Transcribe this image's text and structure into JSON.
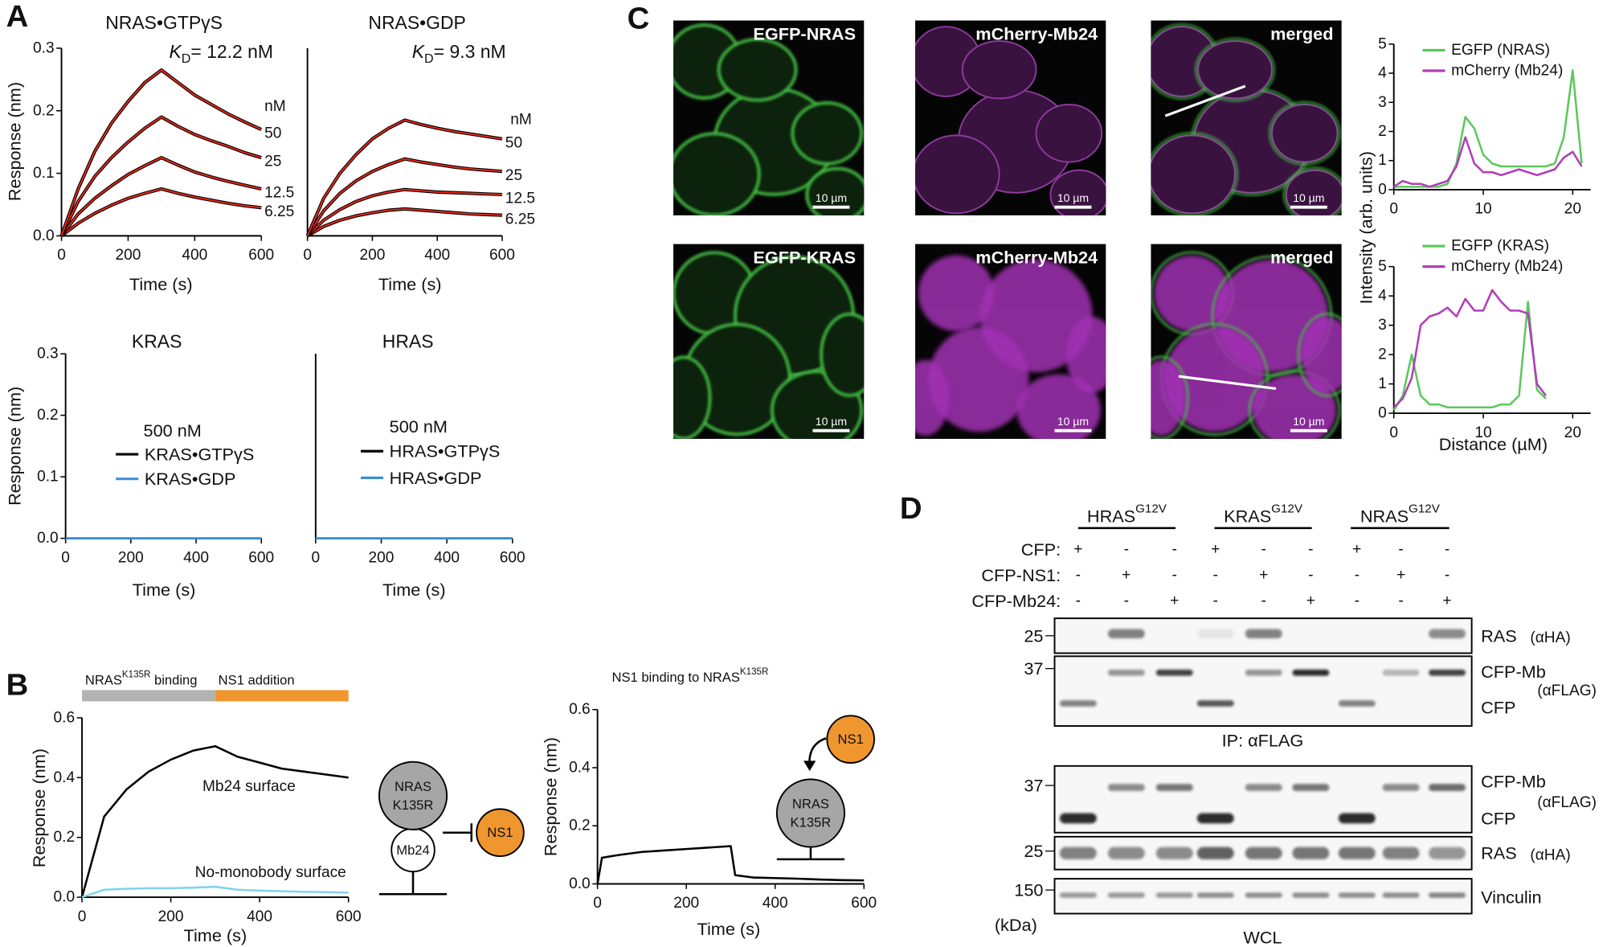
{
  "panels": {
    "a": "A",
    "b": "B",
    "c": "C",
    "d": "D"
  },
  "chart_data": [
    {
      "type": "line",
      "title": "NRAS•GTPγS",
      "kd": {
        "symbol": "K",
        "subscript": "D",
        "value": "= 12.2 nM"
      },
      "unit_label": "nM",
      "series_labels": "end",
      "trace_color": "#000000",
      "x": [
        0,
        50,
        100,
        150,
        200,
        250,
        300,
        350,
        400,
        450,
        500,
        550,
        600
      ],
      "series": [
        {
          "name": "50",
          "color": "#e8291c",
          "values": [
            0,
            0.075,
            0.135,
            0.18,
            0.215,
            0.245,
            0.265,
            0.245,
            0.225,
            0.21,
            0.195,
            0.182,
            0.17
          ]
        },
        {
          "name": "25",
          "color": "#e8291c",
          "values": [
            0,
            0.055,
            0.095,
            0.125,
            0.15,
            0.172,
            0.19,
            0.175,
            0.162,
            0.152,
            0.143,
            0.133,
            0.125
          ]
        },
        {
          "name": "12.5",
          "color": "#e8291c",
          "values": [
            0,
            0.035,
            0.06,
            0.08,
            0.098,
            0.112,
            0.125,
            0.113,
            0.102,
            0.094,
            0.087,
            0.081,
            0.075
          ]
        },
        {
          "name": "6.25",
          "color": "#e8291c",
          "values": [
            0,
            0.02,
            0.036,
            0.049,
            0.06,
            0.068,
            0.075,
            0.068,
            0.062,
            0.057,
            0.052,
            0.048,
            0.045
          ]
        }
      ],
      "xlim": [
        0,
        600
      ],
      "ylim": [
        0,
        0.3
      ],
      "xticks": [
        0,
        200,
        400,
        600
      ],
      "yticks": [
        {
          "value": 0,
          "label": "0.0"
        },
        0.1,
        0.2,
        0.3
      ],
      "x_label": "Time (s)",
      "y_label": "Response (nm)"
    },
    {
      "type": "line",
      "title": "NRAS•GDP",
      "kd": {
        "symbol": "K",
        "subscript": "D",
        "value": "= 9.3 nM"
      },
      "unit_label": "nM",
      "series_labels": "end",
      "trace_color": "#000000",
      "x": [
        0,
        50,
        100,
        150,
        200,
        250,
        300,
        350,
        400,
        450,
        500,
        550,
        600
      ],
      "series": [
        {
          "name": "50",
          "color": "#e8291c",
          "values": [
            0,
            0.06,
            0.1,
            0.13,
            0.155,
            0.172,
            0.185,
            0.178,
            0.172,
            0.167,
            0.163,
            0.159,
            0.155
          ]
        },
        {
          "name": "25",
          "color": "#e8291c",
          "values": [
            0,
            0.04,
            0.068,
            0.088,
            0.103,
            0.114,
            0.123,
            0.118,
            0.114,
            0.11,
            0.107,
            0.105,
            0.103
          ]
        },
        {
          "name": "12.5",
          "color": "#e8291c",
          "values": [
            0,
            0.025,
            0.042,
            0.055,
            0.064,
            0.07,
            0.074,
            0.072,
            0.07,
            0.069,
            0.068,
            0.067,
            0.066
          ]
        },
        {
          "name": "6.25",
          "color": "#e8291c",
          "values": [
            0,
            0.015,
            0.025,
            0.032,
            0.037,
            0.041,
            0.043,
            0.041,
            0.039,
            0.037,
            0.035,
            0.034,
            0.033
          ]
        }
      ],
      "xlim": [
        0,
        600
      ],
      "ylim": [
        0,
        0.3
      ],
      "xticks": [
        0,
        200,
        400,
        600
      ],
      "x_label": "Time (s)"
    },
    {
      "type": "line",
      "title": "KRAS",
      "legend": "center",
      "legend_title": "500 nM",
      "x": [
        0,
        50,
        100,
        150,
        200,
        250,
        300,
        350,
        400,
        450,
        500,
        550,
        600
      ],
      "series": [
        {
          "name": "KRAS•GTPγS",
          "color": "#000000",
          "values": [
            0,
            0,
            0,
            0,
            0,
            0,
            0,
            0,
            0,
            0,
            0,
            0,
            0
          ]
        },
        {
          "name": "KRAS•GDP",
          "color": "#3b8fd9",
          "values": [
            0,
            0,
            0,
            0,
            0,
            0,
            0,
            0,
            0,
            0,
            0,
            0,
            0
          ]
        }
      ],
      "xlim": [
        0,
        600
      ],
      "ylim": [
        0,
        0.3
      ],
      "xticks": [
        0,
        200,
        400,
        600
      ],
      "yticks": [
        {
          "value": 0,
          "label": "0.0"
        },
        0.1,
        0.2,
        0.3
      ],
      "x_label": "Time (s)",
      "y_label": "Response (nm)"
    },
    {
      "type": "line",
      "title": "HRAS",
      "legend": "center",
      "legend_title": "500 nM",
      "x": [
        0,
        50,
        100,
        150,
        200,
        250,
        300,
        350,
        400,
        450,
        500,
        550,
        600
      ],
      "series": [
        {
          "name": "HRAS•GTPγS",
          "color": "#000000",
          "values": [
            0,
            0,
            0,
            0,
            0,
            0,
            0,
            0,
            0,
            0,
            0,
            0,
            0
          ]
        },
        {
          "name": "HRAS•GDP",
          "color": "#3b8fd9",
          "values": [
            0,
            0,
            0,
            0,
            0,
            0,
            0,
            0,
            0,
            0,
            0,
            0,
            0
          ]
        }
      ],
      "xlim": [
        0,
        600
      ],
      "ylim": [
        0,
        0.3
      ],
      "xticks": [
        0,
        200,
        400,
        600
      ],
      "x_label": "Time (s)"
    },
    {
      "type": "line",
      "series_labels": "inline",
      "phases": [
        {
          "label": "NRAS",
          "label_sup": "K135R",
          "label_end": " binding",
          "start": 0,
          "end": 300,
          "color": "#b3b3b3"
        },
        {
          "label": "NS1 addition",
          "start": 300,
          "end": 600,
          "color": "#f0962e"
        }
      ],
      "x": [
        0,
        50,
        100,
        150,
        200,
        250,
        300,
        350,
        400,
        450,
        500,
        550,
        600
      ],
      "series": [
        {
          "name": "Mb24 surface",
          "color": "#000000",
          "values": [
            0,
            0.27,
            0.36,
            0.42,
            0.46,
            0.49,
            0.505,
            0.47,
            0.45,
            0.43,
            0.42,
            0.41,
            0.4
          ]
        },
        {
          "name": "No-monobody surface",
          "color": "#7fd3ea",
          "values": [
            0,
            0.025,
            0.028,
            0.03,
            0.03,
            0.032,
            0.035,
            0.025,
            0.022,
            0.02,
            0.018,
            0.017,
            0.015
          ]
        }
      ],
      "xlim": [
        0,
        600
      ],
      "ylim": [
        0,
        0.6
      ],
      "xticks": [
        0,
        200,
        400,
        600
      ],
      "yticks": [
        {
          "value": 0,
          "label": "0.0"
        },
        0.2,
        0.4,
        0.6
      ],
      "x_label": "Time (s)",
      "y_label": "Response (nm)"
    },
    {
      "type": "line",
      "title": "NS1 binding to NRAS",
      "title_sup": "K135R",
      "x": [
        0,
        10,
        50,
        100,
        150,
        200,
        250,
        300,
        310,
        350,
        400,
        450,
        500,
        550,
        600
      ],
      "series": [
        {
          "color": "#000000",
          "values": [
            0,
            0.09,
            0.1,
            0.11,
            0.115,
            0.12,
            0.125,
            0.13,
            0.03,
            0.022,
            0.02,
            0.018,
            0.015,
            0.013,
            0.012
          ]
        }
      ],
      "xlim": [
        0,
        600
      ],
      "ylim": [
        0,
        0.6
      ],
      "xticks": [
        0,
        200,
        400,
        600
      ],
      "yticks": [
        {
          "value": 0,
          "label": "0.0"
        },
        0.2,
        0.4,
        0.6
      ],
      "x_label": "Time (s)",
      "y_label": "Response (nm)"
    },
    {
      "type": "line",
      "legend": "upper right",
      "x": [
        0,
        1,
        2,
        3,
        4,
        5,
        6,
        7,
        8,
        9,
        10,
        11,
        12,
        13,
        14,
        15,
        16,
        17,
        18,
        19,
        20,
        21
      ],
      "series": [
        {
          "name": "EGFP (NRAS)",
          "color": "#5cc85c",
          "values": [
            0.1,
            0.1,
            0.1,
            0.1,
            0.1,
            0.1,
            0.2,
            0.9,
            2.5,
            2.1,
            1.2,
            0.9,
            0.8,
            0.8,
            0.8,
            0.8,
            0.8,
            0.8,
            0.9,
            1.8,
            4.1,
            0.9
          ]
        },
        {
          "name": "mCherry (Mb24)",
          "color": "#b03fb8",
          "values": [
            0.1,
            0.3,
            0.2,
            0.2,
            0.1,
            0.2,
            0.3,
            0.8,
            1.8,
            0.9,
            0.6,
            0.6,
            0.5,
            0.6,
            0.7,
            0.6,
            0.5,
            0.6,
            0.7,
            1.1,
            1.3,
            0.8
          ]
        }
      ],
      "xlim": [
        0,
        22
      ],
      "ylim": [
        0,
        5
      ],
      "xticks": [
        0,
        10,
        20
      ],
      "yticks": [
        0,
        1,
        2,
        3,
        4,
        5
      ],
      "y_label": "Intensity (arb. units)"
    },
    {
      "type": "line",
      "legend": "upper right",
      "x": [
        0,
        1,
        2,
        3,
        4,
        5,
        6,
        7,
        8,
        9,
        10,
        11,
        12,
        13,
        14,
        15,
        16,
        17
      ],
      "series": [
        {
          "name": "EGFP (KRAS)",
          "color": "#5cc85c",
          "values": [
            0.1,
            0.6,
            2.0,
            0.6,
            0.3,
            0.3,
            0.2,
            0.2,
            0.2,
            0.2,
            0.2,
            0.2,
            0.3,
            0.3,
            0.6,
            3.8,
            0.8,
            0.5
          ]
        },
        {
          "name": "mCherry (Mb24)",
          "color": "#b03fb8",
          "values": [
            0.2,
            0.5,
            1.2,
            3.0,
            3.3,
            3.4,
            3.6,
            3.3,
            3.9,
            3.5,
            3.5,
            4.2,
            3.8,
            3.5,
            3.5,
            3.4,
            1.0,
            0.6
          ]
        }
      ],
      "xlim": [
        0,
        22
      ],
      "ylim": [
        0,
        5
      ],
      "xticks": [
        0,
        10,
        20
      ],
      "yticks": [
        0,
        1,
        2,
        3,
        4,
        5
      ],
      "x_label": "Distance (µM)"
    }
  ],
  "diagrams": {
    "ras": "NRAS",
    "mutation": "K135R",
    "monobody": "Mb24",
    "ns1": "NS1"
  },
  "microscopy": {
    "rows": [
      {
        "labels": [
          "EGFP-NRAS",
          "mCherry-Mb24",
          "merged"
        ]
      },
      {
        "labels": [
          "EGFP-KRAS",
          "mCherry-Mb24",
          "merged"
        ]
      }
    ],
    "scale_bar": "10 µm"
  },
  "blot": {
    "groups": [
      {
        "name": "HRAS",
        "mutation": "G12V"
      },
      {
        "name": "KRAS",
        "mutation": "G12V"
      },
      {
        "name": "NRAS",
        "mutation": "G12V"
      }
    ],
    "conditions": [
      {
        "label": "CFP:",
        "signs": [
          "+",
          "-",
          "-",
          "+",
          "-",
          "-",
          "+",
          "-",
          "-"
        ]
      },
      {
        "label": "CFP-NS1:",
        "signs": [
          "-",
          "+",
          "-",
          "-",
          "+",
          "-",
          "-",
          "+",
          "-"
        ]
      },
      {
        "label": "CFP-Mb24:",
        "signs": [
          "-",
          "-",
          "+",
          "-",
          "-",
          "+",
          "-",
          "-",
          "+"
        ]
      }
    ],
    "markers": [
      25,
      37,
      37,
      25,
      150
    ],
    "marker_unit": "(kDa)",
    "band_labels": [
      {
        "name": "RAS",
        "antibody": "(αHA)"
      },
      {
        "name": "CFP-Mb",
        "antibody": "(αFLAG)"
      },
      {
        "name": "CFP"
      },
      {
        "name": "CFP-Mb",
        "antibody": "(αFLAG)"
      },
      {
        "name": "CFP"
      },
      {
        "name": "RAS",
        "antibody": "(αHA)"
      },
      {
        "name": "Vinculin"
      }
    ],
    "ip_label": "IP: αFLAG",
    "wcl_label": "WCL"
  }
}
